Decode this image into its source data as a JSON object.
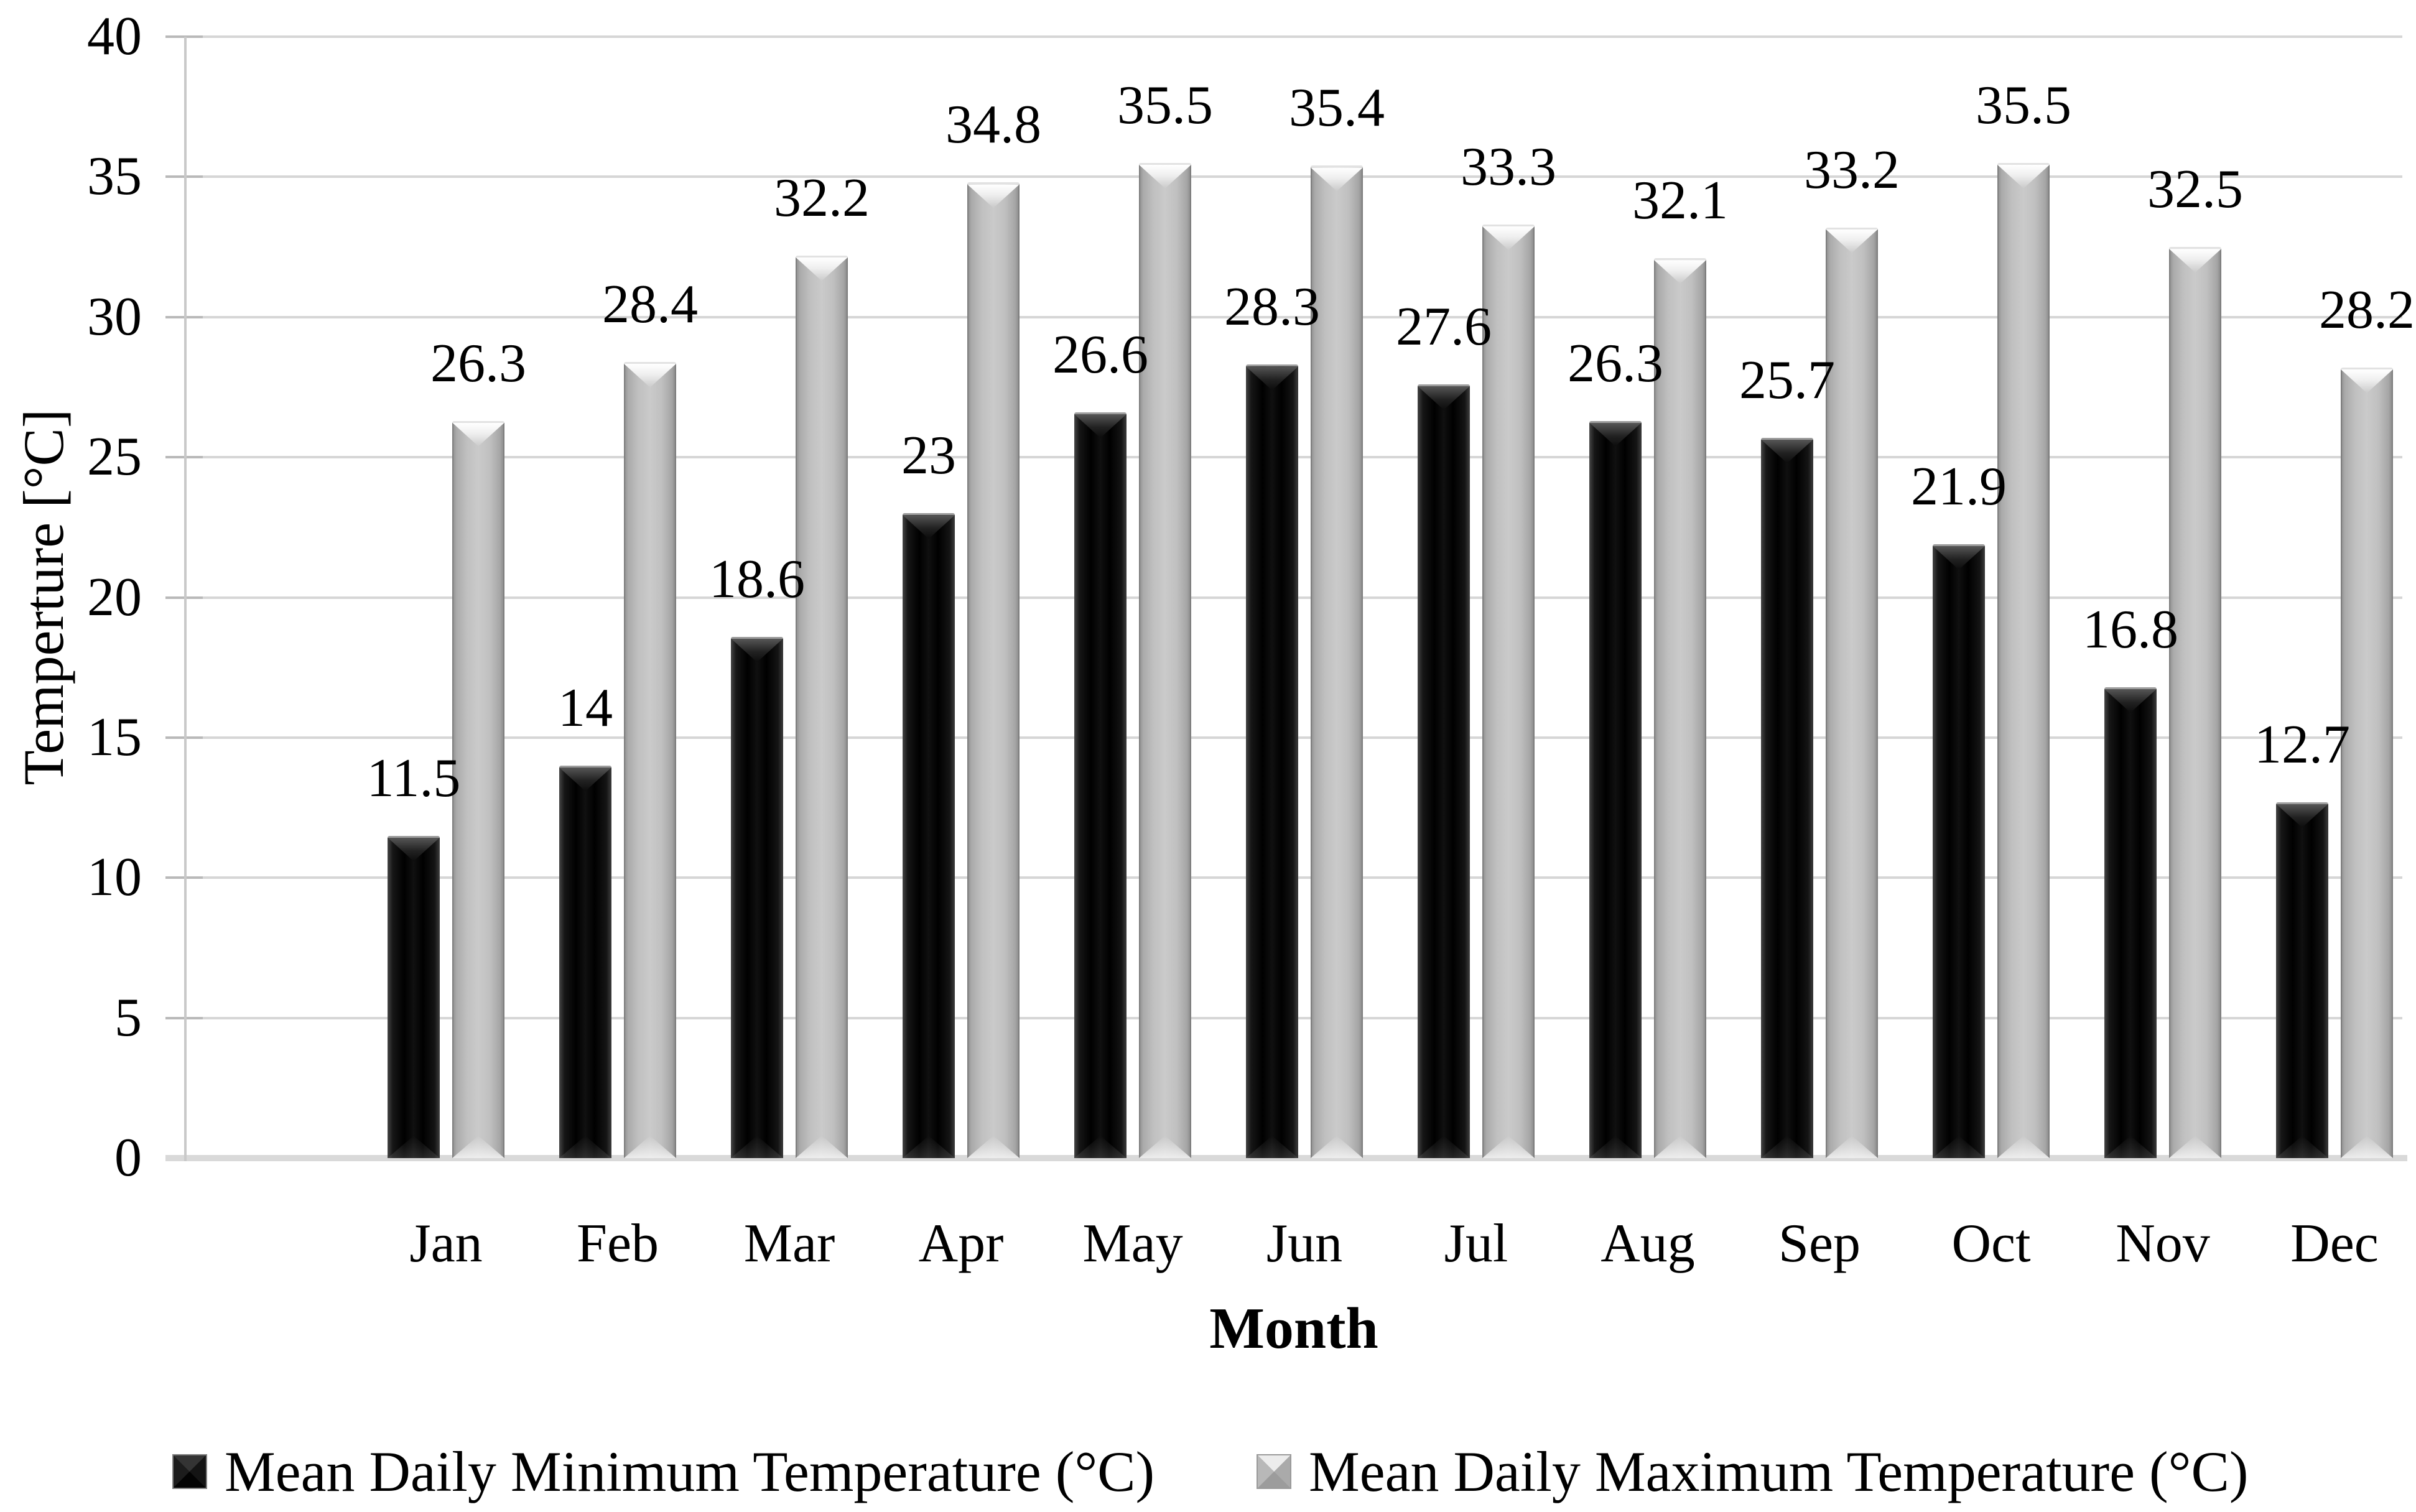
{
  "chart_data": {
    "type": "bar",
    "title": "",
    "categories": [
      "Jan",
      "Feb",
      "Mar",
      "Apr",
      "May",
      "Jun",
      "Jul",
      "Aug",
      "Sep",
      "Oct",
      "Nov",
      "Dec"
    ],
    "series": [
      {
        "name": "Mean Daily Minimum Temperature (°C)",
        "color": "#0a0a0a",
        "values": [
          11.5,
          14,
          18.6,
          23,
          26.6,
          28.3,
          27.6,
          26.3,
          25.7,
          21.9,
          16.8,
          12.7
        ]
      },
      {
        "name": "Mean Daily Maximum Temperature (°C)",
        "color": "#bfbfbf",
        "values": [
          26.3,
          28.4,
          32.2,
          34.8,
          35.5,
          35.4,
          33.3,
          32.1,
          33.2,
          35.5,
          32.5,
          28.2
        ]
      }
    ],
    "xlabel": "Month",
    "ylabel": "Temperture [°C]",
    "ylim": [
      0,
      40
    ],
    "ytick_step": 5,
    "yticks": [
      0,
      5,
      10,
      15,
      20,
      25,
      30,
      35,
      40
    ],
    "grid": true,
    "value_labels": true,
    "legend_position": "bottom",
    "colors": {
      "gridline": "#d6d6d6",
      "axis": "#c9c9c9",
      "baseline": "#d9d9d9",
      "text": "#000000"
    }
  }
}
